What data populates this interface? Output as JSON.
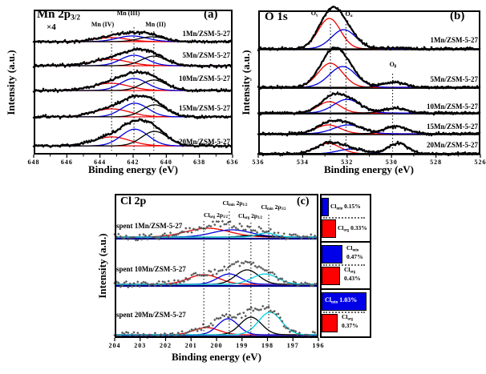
{
  "chart_data": [
    {
      "id": "a",
      "type": "line",
      "panel_label": "(a)",
      "title": "Mn 2p",
      "title_sub": "3/2",
      "multiplier": "×4",
      "xlabel": "Binding energy (eV)",
      "ylabel": "Intensity (a.u.)",
      "x_range": [
        648,
        636
      ],
      "x_axis_reversed": true,
      "x_ticks": [
        648,
        646,
        644,
        642,
        640,
        638,
        636
      ],
      "x_minor_step": 1,
      "envelope": true,
      "scatter": false,
      "divider_color": null,
      "baseline_color": "#ee0000",
      "guides": [
        {
          "ev": 643.3,
          "label_parts": [
            {
              "t": "Mn (IV)"
            }
          ]
        },
        {
          "ev": 641.95,
          "label_parts": [
            {
              "t": "Mn (III)"
            }
          ]
        },
        {
          "ev": 640.75,
          "label_parts": [
            {
              "t": "Mn (II)"
            }
          ]
        }
      ],
      "spectra": [
        {
          "label": "1Mn/ZSM-5-27",
          "baseline": 0.221,
          "noise": 0.008,
          "peaks": [
            {
              "c": 643.35,
              "s": 1.0,
              "a": 0.028,
              "color": "#ee0000"
            },
            {
              "c": 642.05,
              "s": 0.9,
              "a": 0.039,
              "color": "#0000dd"
            },
            {
              "c": 640.85,
              "s": 0.8,
              "a": 0.033,
              "color": "#000000"
            }
          ]
        },
        {
          "label": "5Mn/ZSM-5-27",
          "baseline": 0.387,
          "noise": 0.007,
          "peaks": [
            {
              "c": 643.4,
              "s": 1.1,
              "a": 0.044,
              "color": "#ee0000"
            },
            {
              "c": 641.95,
              "s": 0.8,
              "a": 0.072,
              "color": "#0000dd"
            },
            {
              "c": 640.75,
              "s": 0.75,
              "a": 0.066,
              "color": "#000000"
            }
          ]
        },
        {
          "label": "10Mn/ZSM-5-27",
          "baseline": 0.558,
          "noise": 0.007,
          "peaks": [
            {
              "c": 643.35,
              "s": 1.1,
              "a": 0.05,
              "color": "#ee0000"
            },
            {
              "c": 641.95,
              "s": 0.8,
              "a": 0.083,
              "color": "#0000dd"
            },
            {
              "c": 640.75,
              "s": 0.75,
              "a": 0.072,
              "color": "#000000"
            }
          ]
        },
        {
          "label": "15Mn/ZSM-5-27",
          "baseline": 0.74,
          "noise": 0.007,
          "peaks": [
            {
              "c": 643.3,
              "s": 1.1,
              "a": 0.055,
              "color": "#ee0000"
            },
            {
              "c": 641.9,
              "s": 0.8,
              "a": 0.094,
              "color": "#0000dd"
            },
            {
              "c": 640.7,
              "s": 0.75,
              "a": 0.083,
              "color": "#000000"
            }
          ]
        },
        {
          "label": "20Mn/ZSM-5-27",
          "baseline": 0.94,
          "noise": 0.007,
          "peaks": [
            {
              "c": 643.3,
              "s": 1.1,
              "a": 0.062,
              "color": "#ee0000"
            },
            {
              "c": 641.9,
              "s": 0.82,
              "a": 0.115,
              "color": "#0000dd"
            },
            {
              "c": 640.7,
              "s": 0.78,
              "a": 0.1,
              "color": "#000000"
            }
          ]
        }
      ]
    },
    {
      "id": "b",
      "type": "line",
      "panel_label": "(b)",
      "title": "O 1s",
      "title_sub": "",
      "multiplier": "",
      "xlabel": "Binding energy (eV)",
      "ylabel": "Intensity (a.u.)",
      "x_range": [
        536,
        526
      ],
      "x_axis_reversed": true,
      "x_ticks": [
        536,
        534,
        532,
        530,
        528,
        526
      ],
      "x_minor_step": 1,
      "envelope": true,
      "scatter": false,
      "divider_color": "#000000",
      "baseline_color": null,
      "guides": [
        {
          "ev": 532.75,
          "label_parts": [
            {
              "t": "O"
            },
            {
              "t": "γ",
              "sub": true
            }
          ]
        },
        {
          "ev": 532.05,
          "label_parts": [
            {
              "t": "O"
            },
            {
              "t": "α",
              "sub": true
            }
          ]
        },
        {
          "ev": 529.95,
          "label_parts": [
            {
              "t": "O"
            },
            {
              "t": "β",
              "sub": true
            }
          ]
        }
      ],
      "spectra": [
        {
          "label": "1Mn/ZSM-5-27",
          "baseline": 0.272,
          "noise": 0.006,
          "peaks": [
            {
              "c": 532.8,
              "s": 0.5,
              "a": 0.211,
              "color": "#ee0000"
            },
            {
              "c": 532.15,
              "s": 0.55,
              "a": 0.133,
              "color": "#0000dd"
            },
            {
              "c": 529.9,
              "s": 0.5,
              "a": 0.006,
              "color": "#000000"
            }
          ]
        },
        {
          "label": "5Mn/ZSM-5-27",
          "baseline": 0.539,
          "noise": 0.006,
          "peaks": [
            {
              "c": 532.75,
              "s": 0.55,
              "a": 0.167,
              "color": "#ee0000"
            },
            {
              "c": 532.2,
              "s": 0.6,
              "a": 0.144,
              "color": "#0000dd"
            },
            {
              "c": 529.9,
              "s": 0.5,
              "a": 0.033,
              "color": "#000000"
            }
          ]
        },
        {
          "label": "10Mn/ZSM-5-27",
          "baseline": 0.717,
          "noise": 0.006,
          "peaks": [
            {
              "c": 532.8,
              "s": 0.5,
              "a": 0.078,
              "color": "#ee0000"
            },
            {
              "c": 532.0,
              "s": 0.6,
              "a": 0.094,
              "color": "#0000dd"
            },
            {
              "c": 529.85,
              "s": 0.5,
              "a": 0.033,
              "color": "#000000"
            }
          ]
        },
        {
          "label": "15Mn/ZSM-5-27",
          "baseline": 0.861,
          "noise": 0.006,
          "peaks": [
            {
              "c": 532.85,
              "s": 0.55,
              "a": 0.061,
              "color": "#ee0000"
            },
            {
              "c": 531.95,
              "s": 0.65,
              "a": 0.061,
              "color": "#0000dd"
            },
            {
              "c": 529.8,
              "s": 0.5,
              "a": 0.05,
              "color": "#000000"
            }
          ]
        },
        {
          "label": "20Mn/ZSM-5-27",
          "baseline": 1.0,
          "noise": 0.006,
          "peaks": [
            {
              "c": 532.85,
              "s": 0.55,
              "a": 0.072,
              "color": "#ee0000"
            },
            {
              "c": 531.8,
              "s": 0.6,
              "a": 0.033,
              "color": "#0000dd"
            },
            {
              "c": 529.7,
              "s": 0.45,
              "a": 0.072,
              "color": "#000000"
            }
          ]
        }
      ]
    },
    {
      "id": "c",
      "type": "line",
      "panel_label": "(c)",
      "title": "Cl 2p",
      "title_sub": "",
      "multiplier": "",
      "xlabel": "Binding energy (eV)",
      "ylabel": "Intensity (a.u.)",
      "x_range": [
        204,
        196
      ],
      "x_axis_reversed": true,
      "x_ticks": [
        204,
        203,
        202,
        201,
        200,
        199,
        198,
        197,
        196
      ],
      "x_minor_step": 0,
      "envelope": false,
      "scatter": true,
      "scatter_color": "#5a5a5a",
      "divider_color": "#00008b",
      "baseline_color": null,
      "guides": [
        {
          "ev": 200.5,
          "label_parts": [
            {
              "t": "Cl"
            },
            {
              "t": "org",
              "sub": true
            },
            {
              "t": " 2p"
            },
            {
              "t": "1/2",
              "sub": true
            }
          ]
        },
        {
          "ev": 199.5,
          "label_parts": [
            {
              "t": "Cl"
            },
            {
              "t": "min",
              "sub": true
            },
            {
              "t": " 2p"
            },
            {
              "t": "1/2",
              "sub": true
            }
          ]
        },
        {
          "ev": 198.65,
          "label_parts": [
            {
              "t": "Cl"
            },
            {
              "t": "org",
              "sub": true
            },
            {
              "t": " 2p"
            },
            {
              "t": "3/2",
              "sub": true
            }
          ]
        },
        {
          "ev": 197.95,
          "label_parts": [
            {
              "t": "Cl"
            },
            {
              "t": "min",
              "sub": true
            },
            {
              "t": " 2p"
            },
            {
              "t": "3/2",
              "sub": true
            }
          ]
        }
      ],
      "spectra": [
        {
          "label": "spent 1Mn/ZSM-5-27",
          "baseline": 0.311,
          "noise": 0.022,
          "peaks": [
            {
              "c": 200.35,
              "s": 0.85,
              "a": 0.061,
              "color": "#ee0000"
            },
            {
              "c": 199.4,
              "s": 0.75,
              "a": 0.05,
              "color": "#0000dd"
            },
            {
              "c": 198.6,
              "s": 0.4,
              "a": 0.011,
              "color": "#000000"
            },
            {
              "c": 198.05,
              "s": 0.35,
              "a": 0.028,
              "color": "#00ccdd"
            }
          ]
        },
        {
          "label": "spent 10Mn/ZSM-5-27",
          "baseline": 0.639,
          "noise": 0.02,
          "peaks": [
            {
              "c": 200.5,
              "s": 0.6,
              "a": 0.067,
              "color": "#ee0000"
            },
            {
              "c": 199.5,
              "s": 0.45,
              "a": 0.072,
              "color": "#0000dd"
            },
            {
              "c": 198.8,
              "s": 0.45,
              "a": 0.1,
              "color": "#000000"
            },
            {
              "c": 198.1,
              "s": 0.5,
              "a": 0.072,
              "color": "#00ccdd"
            }
          ]
        },
        {
          "label": "spent 20Mn/ZSM-5-27",
          "baseline": 0.989,
          "noise": 0.02,
          "peaks": [
            {
              "c": 200.4,
              "s": 0.5,
              "a": 0.05,
              "color": "#ee0000"
            },
            {
              "c": 199.55,
              "s": 0.4,
              "a": 0.111,
              "color": "#0000dd"
            },
            {
              "c": 198.65,
              "s": 0.42,
              "a": 0.122,
              "color": "#000000"
            },
            {
              "c": 197.9,
              "s": 0.45,
              "a": 0.156,
              "color": "#00ccdd"
            }
          ]
        }
      ],
      "legend": {
        "boxes": [
          {
            "rows": [
              {
                "name_parts": [
                  {
                    "t": "Cl"
                  },
                  {
                    "t": "min",
                    "sub": true
                  }
                ],
                "value": "0.15%",
                "num": 0.15,
                "color": "#0000e8",
                "layout": "inline"
              },
              {
                "name_parts": [
                  {
                    "t": "Cl"
                  },
                  {
                    "t": "org",
                    "sub": true
                  }
                ],
                "value": "0.33%",
                "num": 0.33,
                "color": "#ff0000",
                "layout": "inline"
              }
            ]
          },
          {
            "rows": [
              {
                "name_parts": [
                  {
                    "t": "Cl"
                  },
                  {
                    "t": "min",
                    "sub": true
                  }
                ],
                "value": "0.47%",
                "num": 0.47,
                "color": "#0000e8",
                "layout": "twoline"
              },
              {
                "name_parts": [
                  {
                    "t": "Cl"
                  },
                  {
                    "t": "org",
                    "sub": true
                  }
                ],
                "value": "0.43%",
                "num": 0.43,
                "color": "#ff0000",
                "layout": "twoline"
              }
            ]
          },
          {
            "rows": [
              {
                "name_parts": [
                  {
                    "t": "Cl"
                  },
                  {
                    "t": "min",
                    "sub": true
                  }
                ],
                "value": "1.03%",
                "num": 1.03,
                "color": "#0000e8",
                "layout": "inside"
              },
              {
                "name_parts": [
                  {
                    "t": "Cl"
                  },
                  {
                    "t": "org",
                    "sub": true
                  }
                ],
                "value": "0.37%",
                "num": 0.37,
                "color": "#ff0000",
                "layout": "twoline"
              }
            ]
          }
        ]
      }
    }
  ]
}
